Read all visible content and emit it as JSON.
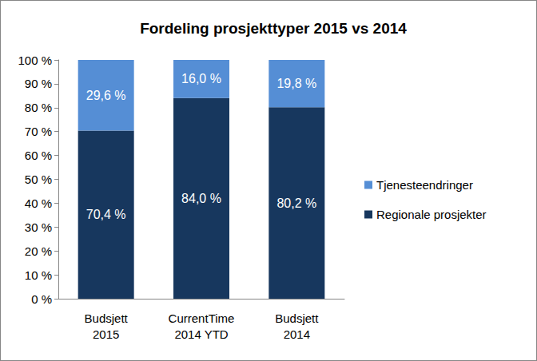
{
  "chart_data": {
    "type": "bar",
    "title": "Fordeling prosjekttyper 2015 vs 2014",
    "categories": [
      "Budsjett\n2015",
      "CurrentTime\n2014 YTD",
      "Budsjett\n2014"
    ],
    "series": [
      {
        "name": "Regionale prosjekter",
        "color": "#17375e",
        "values": [
          70.4,
          84.0,
          80.2
        ],
        "value_labels": [
          "70,4 %",
          "84,0 %",
          "80,2 %"
        ]
      },
      {
        "name": "Tjenesteendringer",
        "color": "#558ed5",
        "values": [
          29.6,
          16.0,
          19.8
        ],
        "value_labels": [
          "29,6 %",
          "16,0 %",
          "19,8 %"
        ]
      }
    ],
    "ylim": [
      0,
      100
    ],
    "yticks": [
      {
        "value": 0,
        "label": "0 %"
      },
      {
        "value": 10,
        "label": "10 %"
      },
      {
        "value": 20,
        "label": "20 %"
      },
      {
        "value": 30,
        "label": "30 %"
      },
      {
        "value": 40,
        "label": "40 %"
      },
      {
        "value": 50,
        "label": "50 %"
      },
      {
        "value": 60,
        "label": "60 %"
      },
      {
        "value": 70,
        "label": "70 %"
      },
      {
        "value": 80,
        "label": "80 %"
      },
      {
        "value": 90,
        "label": "90 %"
      },
      {
        "value": 100,
        "label": "100 %"
      }
    ],
    "stacked": true,
    "data_labels": true,
    "legend": "right",
    "grid": false
  }
}
